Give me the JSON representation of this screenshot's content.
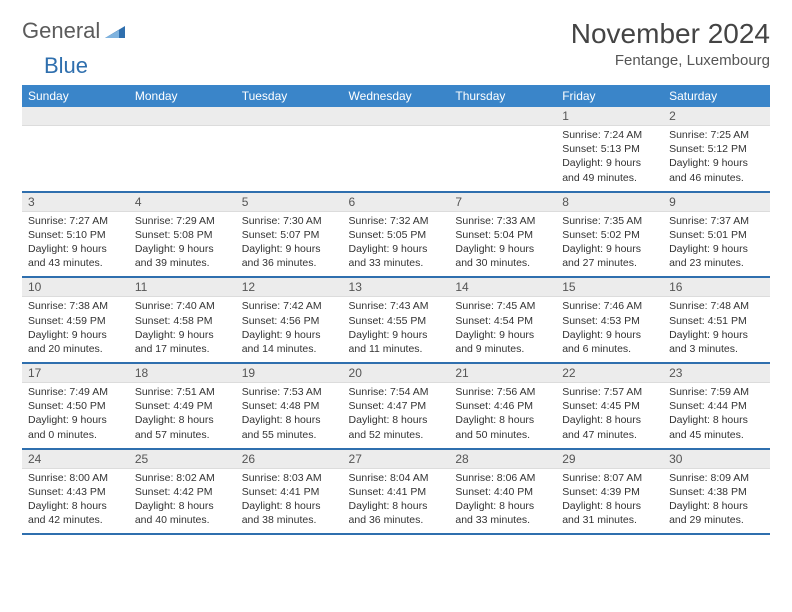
{
  "logo": {
    "word1": "General",
    "word2": "Blue"
  },
  "title": "November 2024",
  "location": "Fentange, Luxembourg",
  "colors": {
    "header_bg": "#3a85c9",
    "header_text": "#ffffff",
    "daynum_bg": "#ececec",
    "border_accent": "#2f6fae",
    "body_text": "#333333",
    "logo_gray": "#5b5b5b",
    "logo_blue": "#2f6fae"
  },
  "day_labels": [
    "Sunday",
    "Monday",
    "Tuesday",
    "Wednesday",
    "Thursday",
    "Friday",
    "Saturday"
  ],
  "weeks": [
    {
      "nums": [
        "",
        "",
        "",
        "",
        "",
        "1",
        "2"
      ],
      "cells": [
        null,
        null,
        null,
        null,
        null,
        {
          "sunrise": "Sunrise: 7:24 AM",
          "sunset": "Sunset: 5:13 PM",
          "day1": "Daylight: 9 hours",
          "day2": "and 49 minutes."
        },
        {
          "sunrise": "Sunrise: 7:25 AM",
          "sunset": "Sunset: 5:12 PM",
          "day1": "Daylight: 9 hours",
          "day2": "and 46 minutes."
        }
      ]
    },
    {
      "nums": [
        "3",
        "4",
        "5",
        "6",
        "7",
        "8",
        "9"
      ],
      "cells": [
        {
          "sunrise": "Sunrise: 7:27 AM",
          "sunset": "Sunset: 5:10 PM",
          "day1": "Daylight: 9 hours",
          "day2": "and 43 minutes."
        },
        {
          "sunrise": "Sunrise: 7:29 AM",
          "sunset": "Sunset: 5:08 PM",
          "day1": "Daylight: 9 hours",
          "day2": "and 39 minutes."
        },
        {
          "sunrise": "Sunrise: 7:30 AM",
          "sunset": "Sunset: 5:07 PM",
          "day1": "Daylight: 9 hours",
          "day2": "and 36 minutes."
        },
        {
          "sunrise": "Sunrise: 7:32 AM",
          "sunset": "Sunset: 5:05 PM",
          "day1": "Daylight: 9 hours",
          "day2": "and 33 minutes."
        },
        {
          "sunrise": "Sunrise: 7:33 AM",
          "sunset": "Sunset: 5:04 PM",
          "day1": "Daylight: 9 hours",
          "day2": "and 30 minutes."
        },
        {
          "sunrise": "Sunrise: 7:35 AM",
          "sunset": "Sunset: 5:02 PM",
          "day1": "Daylight: 9 hours",
          "day2": "and 27 minutes."
        },
        {
          "sunrise": "Sunrise: 7:37 AM",
          "sunset": "Sunset: 5:01 PM",
          "day1": "Daylight: 9 hours",
          "day2": "and 23 minutes."
        }
      ]
    },
    {
      "nums": [
        "10",
        "11",
        "12",
        "13",
        "14",
        "15",
        "16"
      ],
      "cells": [
        {
          "sunrise": "Sunrise: 7:38 AM",
          "sunset": "Sunset: 4:59 PM",
          "day1": "Daylight: 9 hours",
          "day2": "and 20 minutes."
        },
        {
          "sunrise": "Sunrise: 7:40 AM",
          "sunset": "Sunset: 4:58 PM",
          "day1": "Daylight: 9 hours",
          "day2": "and 17 minutes."
        },
        {
          "sunrise": "Sunrise: 7:42 AM",
          "sunset": "Sunset: 4:56 PM",
          "day1": "Daylight: 9 hours",
          "day2": "and 14 minutes."
        },
        {
          "sunrise": "Sunrise: 7:43 AM",
          "sunset": "Sunset: 4:55 PM",
          "day1": "Daylight: 9 hours",
          "day2": "and 11 minutes."
        },
        {
          "sunrise": "Sunrise: 7:45 AM",
          "sunset": "Sunset: 4:54 PM",
          "day1": "Daylight: 9 hours",
          "day2": "and 9 minutes."
        },
        {
          "sunrise": "Sunrise: 7:46 AM",
          "sunset": "Sunset: 4:53 PM",
          "day1": "Daylight: 9 hours",
          "day2": "and 6 minutes."
        },
        {
          "sunrise": "Sunrise: 7:48 AM",
          "sunset": "Sunset: 4:51 PM",
          "day1": "Daylight: 9 hours",
          "day2": "and 3 minutes."
        }
      ]
    },
    {
      "nums": [
        "17",
        "18",
        "19",
        "20",
        "21",
        "22",
        "23"
      ],
      "cells": [
        {
          "sunrise": "Sunrise: 7:49 AM",
          "sunset": "Sunset: 4:50 PM",
          "day1": "Daylight: 9 hours",
          "day2": "and 0 minutes."
        },
        {
          "sunrise": "Sunrise: 7:51 AM",
          "sunset": "Sunset: 4:49 PM",
          "day1": "Daylight: 8 hours",
          "day2": "and 57 minutes."
        },
        {
          "sunrise": "Sunrise: 7:53 AM",
          "sunset": "Sunset: 4:48 PM",
          "day1": "Daylight: 8 hours",
          "day2": "and 55 minutes."
        },
        {
          "sunrise": "Sunrise: 7:54 AM",
          "sunset": "Sunset: 4:47 PM",
          "day1": "Daylight: 8 hours",
          "day2": "and 52 minutes."
        },
        {
          "sunrise": "Sunrise: 7:56 AM",
          "sunset": "Sunset: 4:46 PM",
          "day1": "Daylight: 8 hours",
          "day2": "and 50 minutes."
        },
        {
          "sunrise": "Sunrise: 7:57 AM",
          "sunset": "Sunset: 4:45 PM",
          "day1": "Daylight: 8 hours",
          "day2": "and 47 minutes."
        },
        {
          "sunrise": "Sunrise: 7:59 AM",
          "sunset": "Sunset: 4:44 PM",
          "day1": "Daylight: 8 hours",
          "day2": "and 45 minutes."
        }
      ]
    },
    {
      "nums": [
        "24",
        "25",
        "26",
        "27",
        "28",
        "29",
        "30"
      ],
      "cells": [
        {
          "sunrise": "Sunrise: 8:00 AM",
          "sunset": "Sunset: 4:43 PM",
          "day1": "Daylight: 8 hours",
          "day2": "and 42 minutes."
        },
        {
          "sunrise": "Sunrise: 8:02 AM",
          "sunset": "Sunset: 4:42 PM",
          "day1": "Daylight: 8 hours",
          "day2": "and 40 minutes."
        },
        {
          "sunrise": "Sunrise: 8:03 AM",
          "sunset": "Sunset: 4:41 PM",
          "day1": "Daylight: 8 hours",
          "day2": "and 38 minutes."
        },
        {
          "sunrise": "Sunrise: 8:04 AM",
          "sunset": "Sunset: 4:41 PM",
          "day1": "Daylight: 8 hours",
          "day2": "and 36 minutes."
        },
        {
          "sunrise": "Sunrise: 8:06 AM",
          "sunset": "Sunset: 4:40 PM",
          "day1": "Daylight: 8 hours",
          "day2": "and 33 minutes."
        },
        {
          "sunrise": "Sunrise: 8:07 AM",
          "sunset": "Sunset: 4:39 PM",
          "day1": "Daylight: 8 hours",
          "day2": "and 31 minutes."
        },
        {
          "sunrise": "Sunrise: 8:09 AM",
          "sunset": "Sunset: 4:38 PM",
          "day1": "Daylight: 8 hours",
          "day2": "and 29 minutes."
        }
      ]
    }
  ]
}
